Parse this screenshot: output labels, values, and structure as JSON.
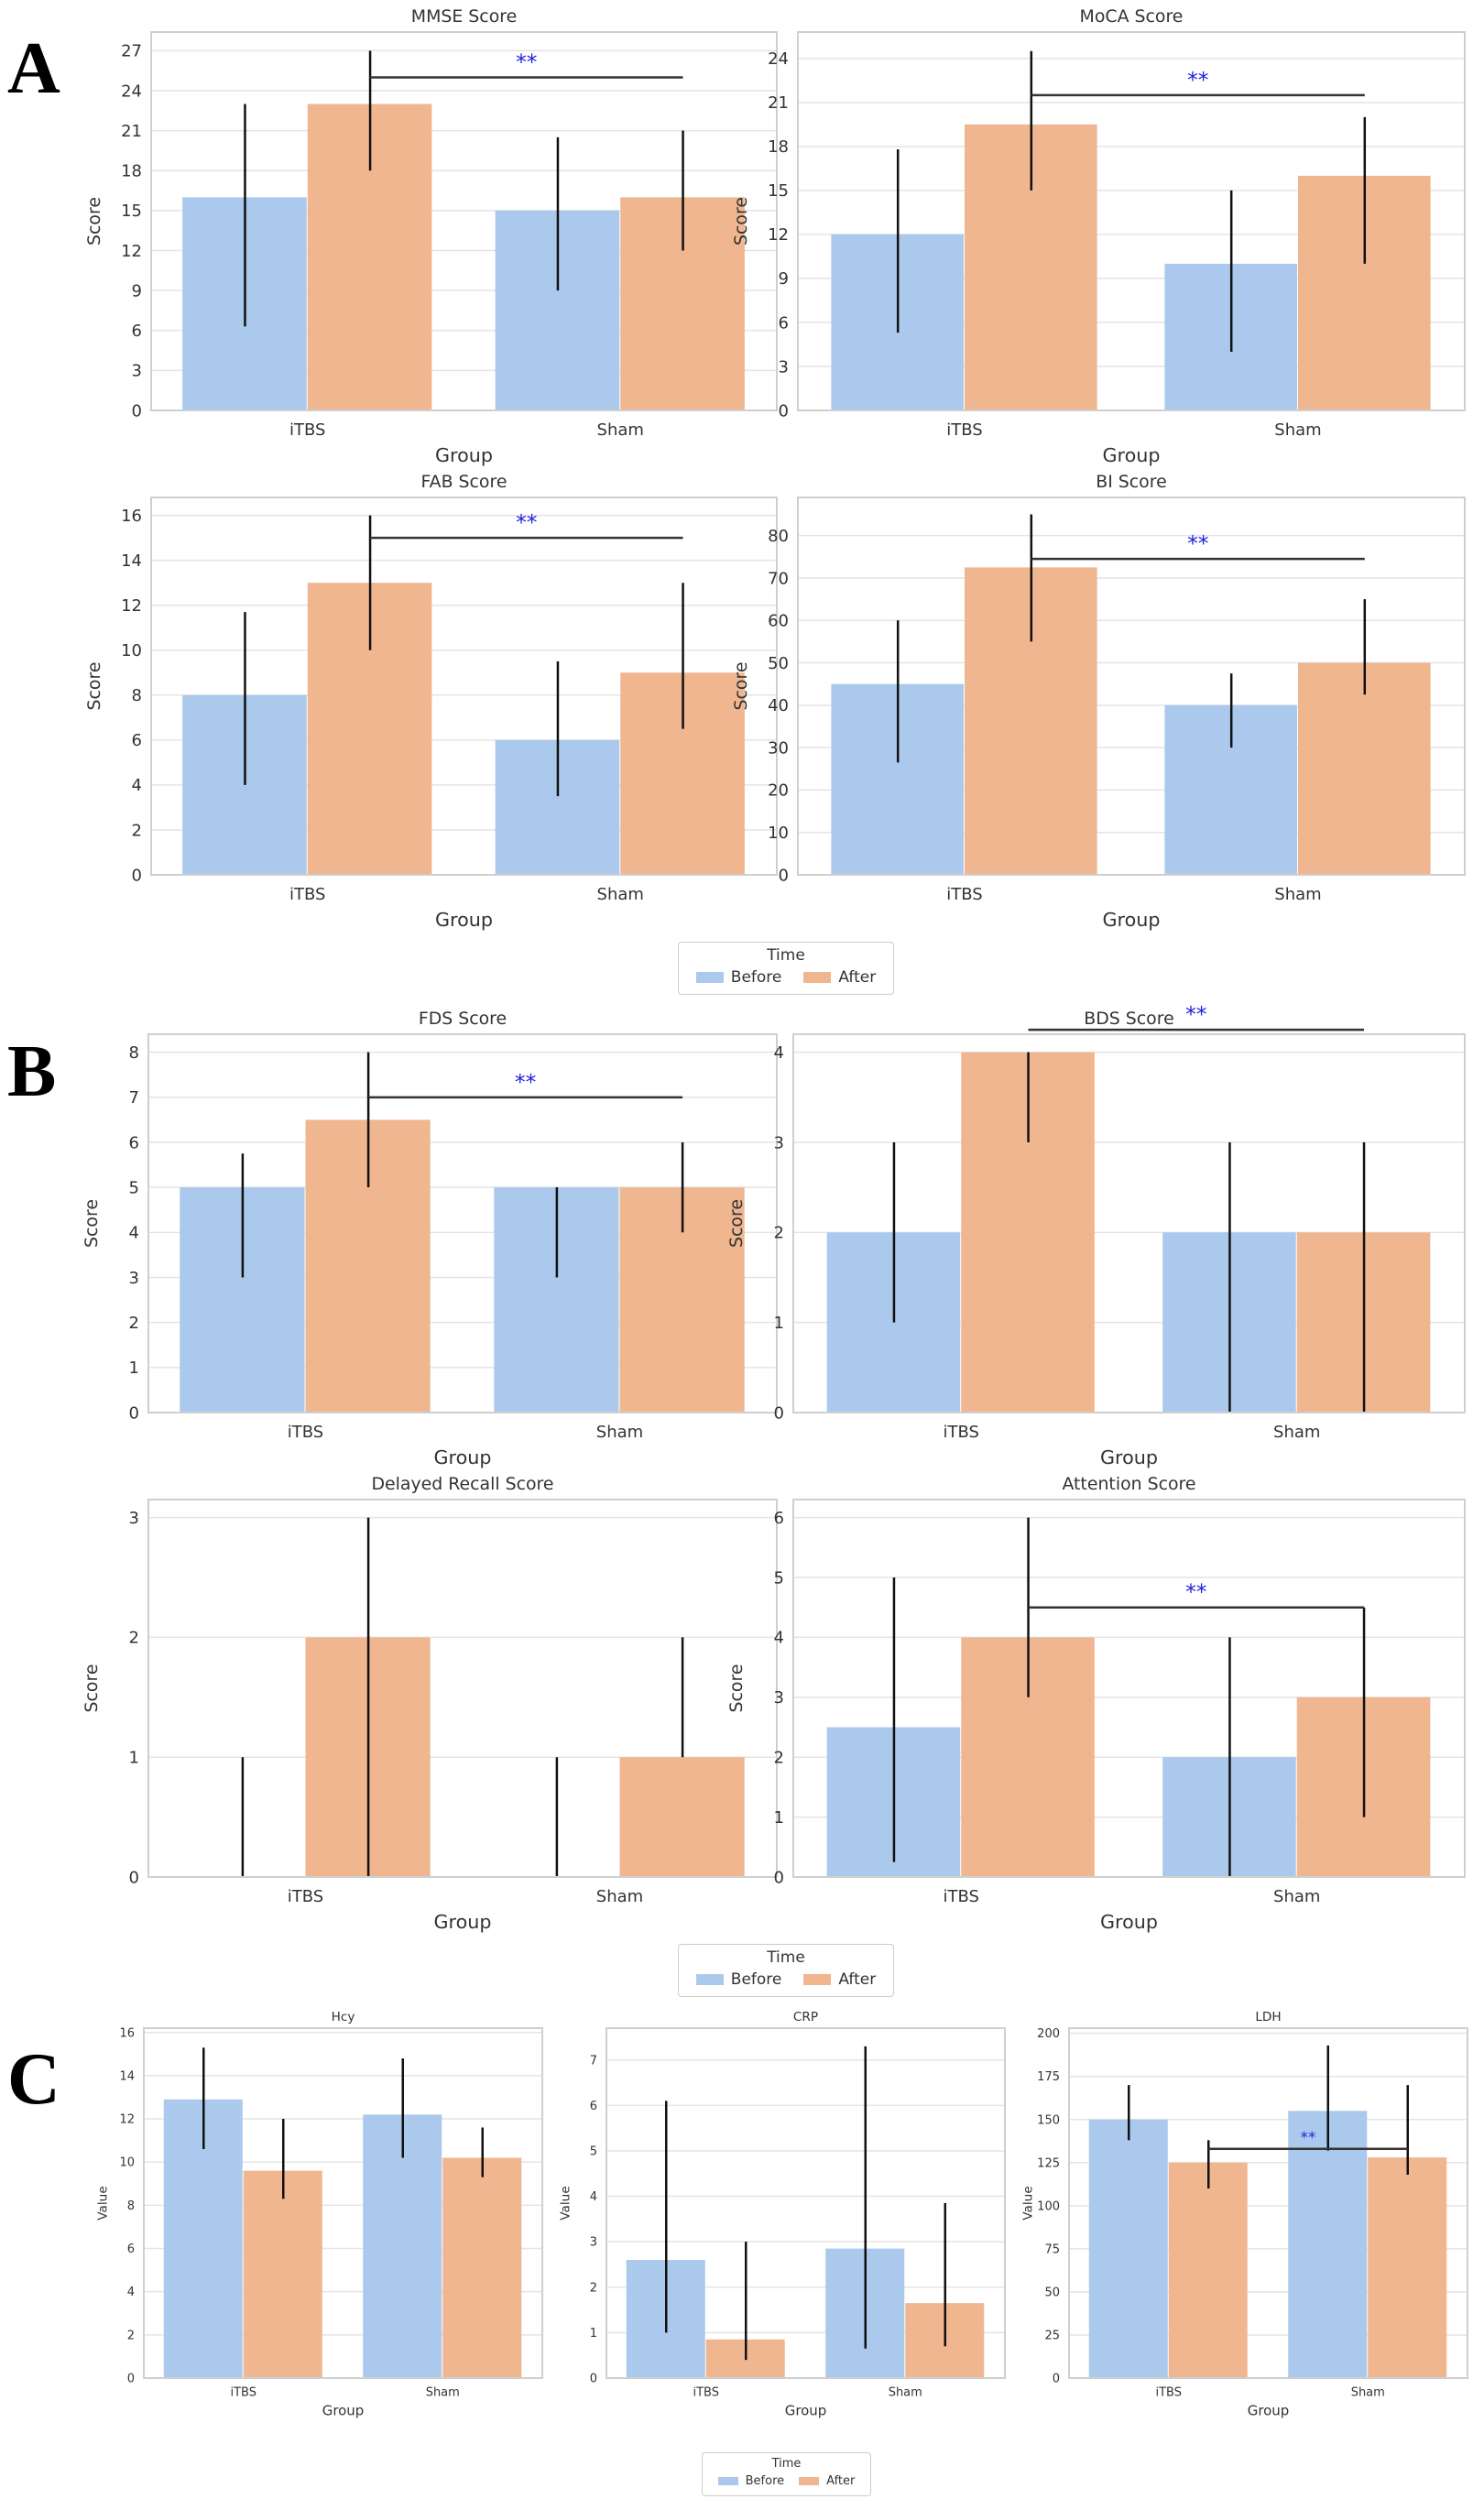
{
  "panels": {
    "a": "A",
    "b": "B",
    "c": "C"
  },
  "legend": {
    "title": "Time",
    "before": "Before",
    "after": "After"
  },
  "colors": {
    "before": "#abc9ec",
    "after": "#efb690",
    "sig": "#2222dd"
  },
  "chart_data": [
    {
      "type": "bar",
      "title": "MMSE Score",
      "xlabel": "Group",
      "ylabel": "Score",
      "ylim": [
        0,
        28.4
      ],
      "yticks": [
        0,
        3,
        6,
        9,
        12,
        15,
        18,
        21,
        24,
        27
      ],
      "categories": [
        "iTBS",
        "Sham"
      ],
      "series": [
        {
          "name": "Before",
          "values": [
            16,
            15
          ],
          "err": [
            [
              6.3,
              23
            ],
            [
              9,
              20.5
            ]
          ]
        },
        {
          "name": "After",
          "values": [
            23,
            16
          ],
          "err": [
            [
              18,
              27
            ],
            [
              12,
              21
            ]
          ]
        }
      ],
      "significance": {
        "label": "**",
        "y": 25
      }
    },
    {
      "type": "bar",
      "title": "MoCA Score",
      "xlabel": "Group",
      "ylabel": "Score",
      "ylim": [
        0,
        25.8
      ],
      "yticks": [
        0,
        3,
        6,
        9,
        12,
        15,
        18,
        21,
        24
      ],
      "categories": [
        "iTBS",
        "Sham"
      ],
      "series": [
        {
          "name": "Before",
          "values": [
            12,
            10
          ],
          "err": [
            [
              5.3,
              17.8
            ],
            [
              4,
              15
            ]
          ]
        },
        {
          "name": "After",
          "values": [
            19.5,
            16
          ],
          "err": [
            [
              15,
              24.5
            ],
            [
              10,
              20
            ]
          ]
        }
      ],
      "significance": {
        "label": "**",
        "y": 21.5
      }
    },
    {
      "type": "bar",
      "title": "FAB Score",
      "xlabel": "Group",
      "ylabel": "Score",
      "ylim": [
        0,
        16.8
      ],
      "yticks": [
        0,
        2,
        4,
        6,
        8,
        10,
        12,
        14,
        16
      ],
      "categories": [
        "iTBS",
        "Sham"
      ],
      "series": [
        {
          "name": "Before",
          "values": [
            8,
            6
          ],
          "err": [
            [
              4,
              11.7
            ],
            [
              3.5,
              9.5
            ]
          ]
        },
        {
          "name": "After",
          "values": [
            13,
            9
          ],
          "err": [
            [
              10,
              16
            ],
            [
              6.5,
              13
            ]
          ]
        }
      ],
      "significance": {
        "label": "**",
        "y": 15
      }
    },
    {
      "type": "bar",
      "title": "BI Score",
      "xlabel": "Group",
      "ylabel": "Score",
      "ylim": [
        0,
        89
      ],
      "yticks": [
        0,
        10,
        20,
        30,
        40,
        50,
        60,
        70,
        80
      ],
      "categories": [
        "iTBS",
        "Sham"
      ],
      "series": [
        {
          "name": "Before",
          "values": [
            45,
            40
          ],
          "err": [
            [
              26.5,
              60
            ],
            [
              30,
              47.5
            ]
          ]
        },
        {
          "name": "After",
          "values": [
            72.5,
            50
          ],
          "err": [
            [
              55,
              85
            ],
            [
              42.5,
              65
            ]
          ]
        }
      ],
      "significance": {
        "label": "**",
        "y": 74.5
      }
    },
    {
      "type": "bar",
      "title": "FDS Score",
      "xlabel": "Group",
      "ylabel": "Score",
      "ylim": [
        0,
        8.4
      ],
      "yticks": [
        0,
        1,
        2,
        3,
        4,
        5,
        6,
        7,
        8
      ],
      "categories": [
        "iTBS",
        "Sham"
      ],
      "series": [
        {
          "name": "Before",
          "values": [
            5,
            5
          ],
          "err": [
            [
              3,
              5.75
            ],
            [
              3,
              5
            ]
          ]
        },
        {
          "name": "After",
          "values": [
            6.5,
            5
          ],
          "err": [
            [
              5,
              8
            ],
            [
              4,
              6
            ]
          ]
        }
      ],
      "significance": {
        "label": "**",
        "y": 7
      }
    },
    {
      "type": "bar",
      "title": "BDS Score",
      "xlabel": "Group",
      "ylabel": "Score",
      "ylim": [
        0,
        4.2
      ],
      "yticks": [
        0,
        1,
        2,
        3,
        4
      ],
      "categories": [
        "iTBS",
        "Sham"
      ],
      "series": [
        {
          "name": "Before",
          "values": [
            2,
            2
          ],
          "err": [
            [
              1,
              3
            ],
            [
              0,
              3
            ]
          ]
        },
        {
          "name": "After",
          "values": [
            4,
            2
          ],
          "err": [
            [
              3,
              4
            ],
            [
              0,
              3
            ]
          ]
        }
      ],
      "significance": {
        "label": "**",
        "y": 4.25
      }
    },
    {
      "type": "bar",
      "title": "Delayed Recall Score",
      "xlabel": "Group",
      "ylabel": "Score",
      "ylim": [
        0,
        3.15
      ],
      "yticks": [
        0,
        1,
        2,
        3
      ],
      "categories": [
        "iTBS",
        "Sham"
      ],
      "series": [
        {
          "name": "Before",
          "values": [
            0,
            0
          ],
          "err": [
            [
              0,
              1
            ],
            [
              0,
              1
            ]
          ]
        },
        {
          "name": "After",
          "values": [
            2,
            1
          ],
          "err": [
            [
              0,
              3
            ],
            [
              1,
              2
            ]
          ]
        }
      ]
    },
    {
      "type": "bar",
      "title": "Attention Score",
      "xlabel": "Group",
      "ylabel": "Score",
      "ylim": [
        0,
        6.3
      ],
      "yticks": [
        0,
        1,
        2,
        3,
        4,
        5,
        6
      ],
      "categories": [
        "iTBS",
        "Sham"
      ],
      "series": [
        {
          "name": "Before",
          "values": [
            2.5,
            2
          ],
          "err": [
            [
              0.25,
              5
            ],
            [
              0,
              4
            ]
          ]
        },
        {
          "name": "After",
          "values": [
            4,
            3
          ],
          "err": [
            [
              3,
              6
            ],
            [
              1,
              4.5
            ]
          ]
        }
      ],
      "significance": {
        "label": "**",
        "y": 4.5
      }
    },
    {
      "type": "bar",
      "title": "Hcy",
      "xlabel": "Group",
      "ylabel": "Value",
      "ylim": [
        0,
        16.2
      ],
      "yticks": [
        0,
        2,
        4,
        6,
        8,
        10,
        12,
        14,
        16
      ],
      "categories": [
        "iTBS",
        "Sham"
      ],
      "series": [
        {
          "name": "Before",
          "values": [
            12.9,
            12.2
          ],
          "err": [
            [
              10.6,
              15.3
            ],
            [
              10.2,
              14.8
            ]
          ]
        },
        {
          "name": "After",
          "values": [
            9.6,
            10.2
          ],
          "err": [
            [
              8.3,
              12
            ],
            [
              9.3,
              11.6
            ]
          ]
        }
      ]
    },
    {
      "type": "bar",
      "title": "CRP",
      "xlabel": "Group",
      "ylabel": "Value",
      "ylim": [
        0,
        7.7
      ],
      "yticks": [
        0,
        1,
        2,
        3,
        4,
        5,
        6,
        7
      ],
      "categories": [
        "iTBS",
        "Sham"
      ],
      "series": [
        {
          "name": "Before",
          "values": [
            2.6,
            2.85
          ],
          "err": [
            [
              1,
              6.1
            ],
            [
              0.65,
              7.3
            ]
          ]
        },
        {
          "name": "After",
          "values": [
            0.85,
            1.65
          ],
          "err": [
            [
              0.4,
              3
            ],
            [
              0.7,
              3.85
            ]
          ]
        }
      ]
    },
    {
      "type": "bar",
      "title": "LDH",
      "xlabel": "Group",
      "ylabel": "Value",
      "ylim": [
        0,
        203
      ],
      "yticks": [
        0,
        25,
        50,
        75,
        100,
        125,
        150,
        175,
        200
      ],
      "categories": [
        "iTBS",
        "Sham"
      ],
      "series": [
        {
          "name": "Before",
          "values": [
            150,
            155
          ],
          "err": [
            [
              138,
              170
            ],
            [
              132,
              193
            ]
          ]
        },
        {
          "name": "After",
          "values": [
            125,
            128
          ],
          "err": [
            [
              110,
              138
            ],
            [
              118,
              170
            ]
          ]
        }
      ],
      "significance": {
        "label": "**",
        "y": 133
      }
    }
  ]
}
